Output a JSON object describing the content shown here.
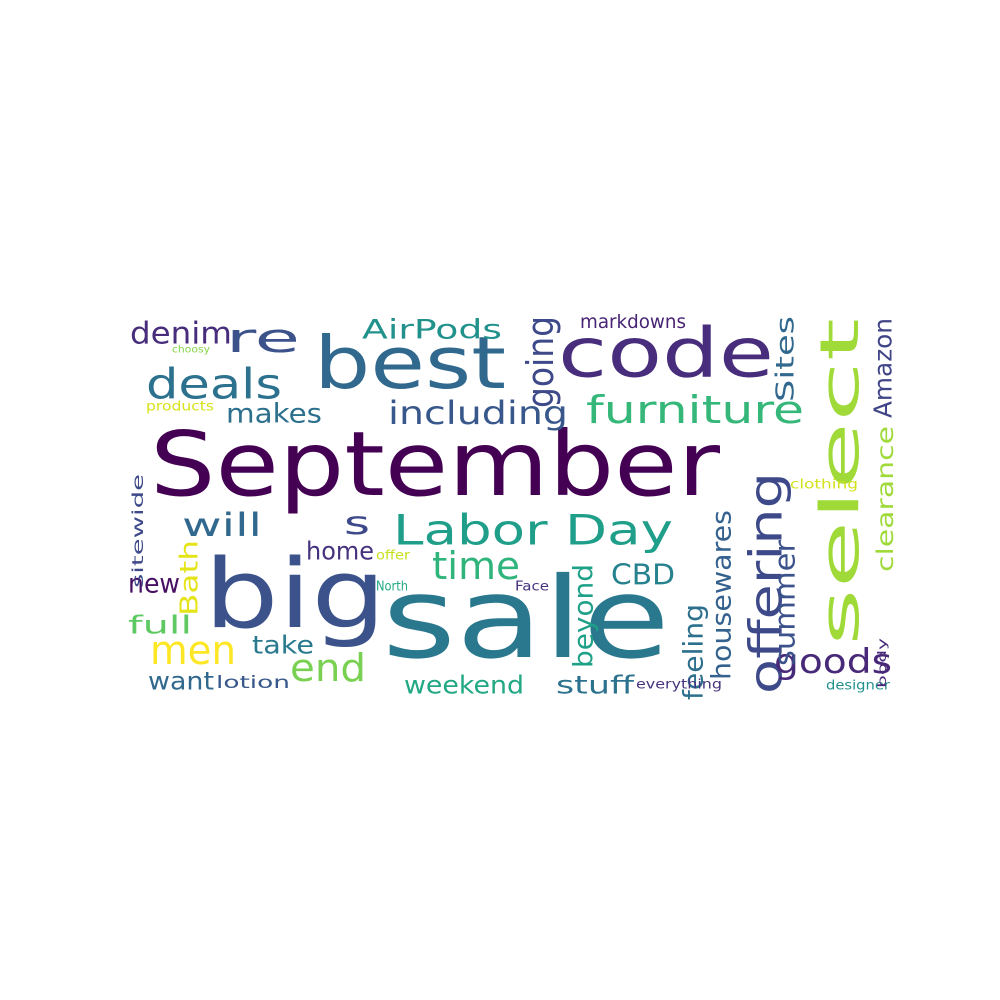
{
  "words": [
    {
      "text": "September",
      "color": "#440154"
    },
    {
      "text": "sale",
      "color": "#2a788e"
    },
    {
      "text": "big",
      "color": "#3b528b"
    },
    {
      "text": "select",
      "color": "#a0da39"
    },
    {
      "text": "best",
      "color": "#31688e"
    },
    {
      "text": "code",
      "color": "#472d7b"
    },
    {
      "text": "Labor Day",
      "color": "#1f9e89"
    },
    {
      "text": "offering",
      "color": "#3e4989"
    },
    {
      "text": "furniture",
      "color": "#35b779"
    },
    {
      "text": "deals",
      "color": "#2c728e"
    },
    {
      "text": "re",
      "color": "#3b528b"
    },
    {
      "text": "goods",
      "color": "#482878"
    },
    {
      "text": "time",
      "color": "#2fb47c"
    },
    {
      "text": "end",
      "color": "#7ad151"
    },
    {
      "text": "men",
      "color": "#fde725"
    },
    {
      "text": "will",
      "color": "#31688e"
    },
    {
      "text": "s",
      "color": "#3e4989"
    },
    {
      "text": "including",
      "color": "#38588c"
    },
    {
      "text": "CBD",
      "color": "#26828e"
    },
    {
      "text": "denim",
      "color": "#472d7b"
    },
    {
      "text": "makes",
      "color": "#2d708e"
    },
    {
      "text": "AirPods",
      "color": "#21918c"
    },
    {
      "text": "going",
      "color": "#3e4989"
    },
    {
      "text": "Sites",
      "color": "#31688e"
    },
    {
      "text": "Amazon",
      "color": "#414487"
    },
    {
      "text": "clearance",
      "color": "#9fda3a"
    },
    {
      "text": "housewares",
      "color": "#34618d"
    },
    {
      "text": "feeling",
      "color": "#2d708e"
    },
    {
      "text": "summer",
      "color": "#3b528b"
    },
    {
      "text": "beyond",
      "color": "#1fa088"
    },
    {
      "text": "stuff",
      "color": "#2c728e"
    },
    {
      "text": "weekend",
      "color": "#22a884"
    },
    {
      "text": "take",
      "color": "#29798e"
    },
    {
      "text": "home",
      "color": "#46327e"
    },
    {
      "text": "Bath",
      "color": "#e5e419"
    },
    {
      "text": "new",
      "color": "#471063"
    },
    {
      "text": "full",
      "color": "#5ec962"
    },
    {
      "text": "want",
      "color": "#31688e"
    },
    {
      "text": "lotion",
      "color": "#38588c"
    },
    {
      "text": "sitewide",
      "color": "#3e4989"
    },
    {
      "text": "markdowns",
      "color": "#482475"
    },
    {
      "text": "everything",
      "color": "#46327e"
    },
    {
      "text": "clothing",
      "color": "#d2e21b"
    },
    {
      "text": "designer",
      "color": "#21918c"
    },
    {
      "text": "body",
      "color": "#482878"
    },
    {
      "text": "offer",
      "color": "#c8e020"
    },
    {
      "text": "North",
      "color": "#22a884"
    },
    {
      "text": "Face",
      "color": "#46327e"
    },
    {
      "text": "products",
      "color": "#d8e219"
    },
    {
      "text": "choosy",
      "color": "#86d549"
    }
  ]
}
